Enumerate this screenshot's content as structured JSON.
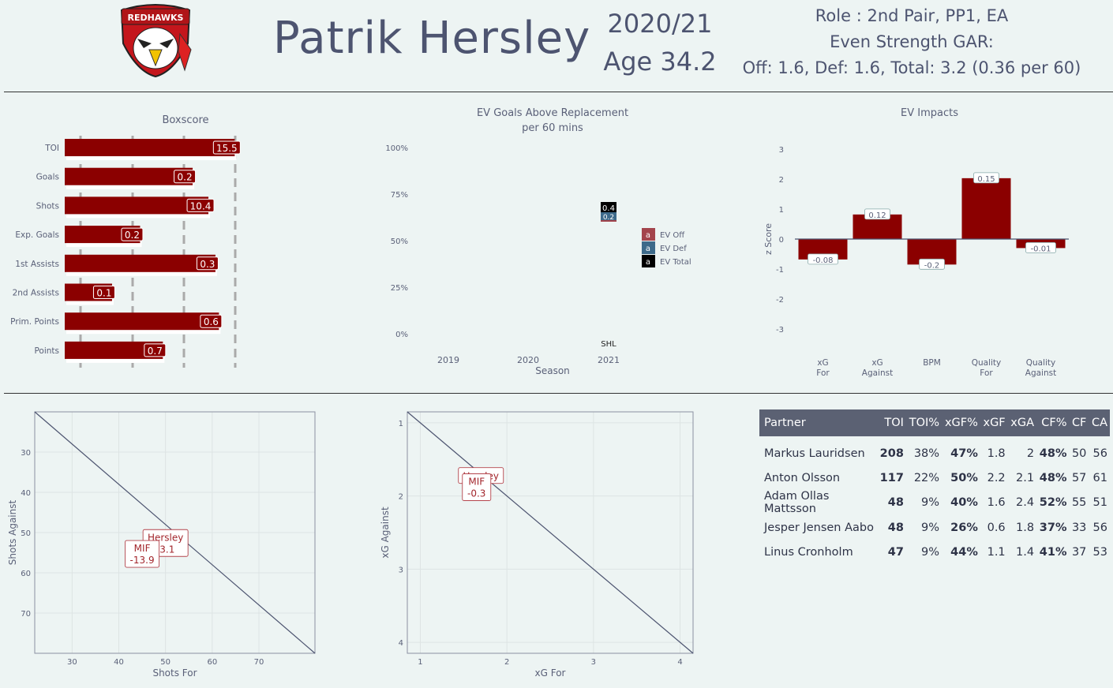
{
  "header": {
    "team_logo_text": "REDHAWKS",
    "player_name": "Patrik  Hersley",
    "season": "2020/21",
    "age": "Age 34.2",
    "role": "Role : 2nd  Pair,  PP1,  EA",
    "gar_label": "Even Strength GAR:",
    "gar_values": "Off: 1.6,  Def: 1.6,  Total: 3.2 (0.36 per 60)"
  },
  "boxscore": {
    "title": "Boxscore",
    "rows": [
      {
        "label": "TOI",
        "value": 15.5,
        "text": "15.5",
        "pct": 0.97
      },
      {
        "label": "Goals",
        "value": 0.2,
        "text": "0.2",
        "pct": 0.73
      },
      {
        "label": "Shots",
        "value": 10.4,
        "text": "10.4",
        "pct": 0.82
      },
      {
        "label": "Exp. Goals",
        "value": 0.2,
        "text": "0.2",
        "pct": 0.43
      },
      {
        "label": "1st Assists",
        "value": 0.3,
        "text": "0.3",
        "pct": 0.86
      },
      {
        "label": "2nd Assists",
        "value": 0.1,
        "text": "0.1",
        "pct": 0.27
      },
      {
        "label": "Prim. Points",
        "value": 0.6,
        "text": "0.6",
        "pct": 0.88
      },
      {
        "label": "Points",
        "value": 0.7,
        "text": "0.7",
        "pct": 0.56
      }
    ]
  },
  "gar_chart": {
    "title": "EV Goals Above Replacement",
    "subtitle": "per 60 mins",
    "y_ticks": [
      "100%",
      "75%",
      "50%",
      "25%",
      "0%"
    ],
    "x_ticks": [
      "2019",
      "2020",
      "2021"
    ],
    "xlabel": "Season",
    "league_label": "SHL",
    "legend": [
      {
        "key": "a",
        "label": "EV Off",
        "color": "#a3444c"
      },
      {
        "key": "a",
        "label": "EV Def",
        "color": "#3d6a8a"
      },
      {
        "key": "a",
        "label": "EV Total",
        "color": "#000000"
      }
    ],
    "point_labels": [
      "0.4",
      "0.2"
    ]
  },
  "impacts": {
    "title": "EV  Impacts",
    "ylabel": "z Score",
    "y_ticks": [
      "3",
      "2",
      "1",
      "0",
      "-1",
      "-2",
      "-3"
    ],
    "bars": [
      {
        "label1": "xG",
        "label2": "For",
        "z": -0.68,
        "text": "-0.08"
      },
      {
        "label1": "xG",
        "label2": "Against",
        "z": 0.82,
        "text": "0.12"
      },
      {
        "label1": "BPM",
        "label2": "",
        "z": -0.85,
        "text": "-0.2"
      },
      {
        "label1": "Quality",
        "label2": "For",
        "z": 2.03,
        "text": "0.15"
      },
      {
        "label1": "Quality",
        "label2": "Against",
        "z": -0.3,
        "text": "-0.01"
      }
    ]
  },
  "chart_data": [
    {
      "type": "bar",
      "title": "Boxscore",
      "categories": [
        "TOI",
        "Goals",
        "Shots",
        "Exp. Goals",
        "1st Assists",
        "2nd Assists",
        "Prim. Points",
        "Points"
      ],
      "values": [
        15.5,
        0.2,
        10.4,
        0.2,
        0.3,
        0.1,
        0.6,
        0.7
      ]
    },
    {
      "type": "scatter",
      "title": "EV Goals Above Replacement per 60 mins",
      "xlabel": "Season",
      "series": [
        {
          "name": "EV Off",
          "x": [
            2021
          ],
          "values": [
            0.2
          ]
        },
        {
          "name": "EV Def",
          "x": [
            2021
          ],
          "values": [
            0.2
          ]
        },
        {
          "name": "EV Total",
          "x": [
            2021
          ],
          "values": [
            0.4
          ]
        }
      ],
      "ylim": [
        "0%",
        "100%"
      ]
    },
    {
      "type": "bar",
      "title": "EV Impacts",
      "ylabel": "z Score",
      "categories": [
        "xG For",
        "xG Against",
        "BPM",
        "Quality For",
        "Quality Against"
      ],
      "values": [
        -0.68,
        0.82,
        -0.85,
        2.03,
        -0.3
      ],
      "ylim": [
        -3,
        3
      ]
    },
    {
      "type": "scatter",
      "xlabel": "Shots For",
      "ylabel": "Shots Against",
      "points": [
        {
          "label": "Hersley",
          "value": "-3.1",
          "x": 50,
          "y": 52.6
        },
        {
          "label": "MIF",
          "value": "-13.9",
          "x": 45,
          "y": 55.3
        }
      ],
      "xlim": [
        22,
        82
      ],
      "ylim": [
        80,
        20
      ]
    },
    {
      "type": "scatter",
      "xlabel": "xG For",
      "ylabel": "xG Against",
      "points": [
        {
          "label": "Hersley",
          "value": "",
          "x": 1.7,
          "y": 1.72
        },
        {
          "label": "MIF",
          "value": "-0.3",
          "x": 1.65,
          "y": 1.88
        }
      ],
      "xlim": [
        0.85,
        4.15
      ],
      "ylim": [
        4.15,
        0.85
      ]
    }
  ],
  "scatter_shots": {
    "xlabel": "Shots For",
    "ylabel": "Shots Against",
    "x_ticks": [
      "30",
      "40",
      "50",
      "60",
      "70"
    ],
    "y_ticks": [
      "30",
      "40",
      "50",
      "60",
      "70"
    ],
    "labels": [
      {
        "name": "Hersley",
        "value": "-3.1"
      },
      {
        "name": "MIF",
        "value": "-13.9"
      }
    ]
  },
  "scatter_xg": {
    "xlabel": "xG For",
    "ylabel": "xG Against",
    "x_ticks": [
      "1",
      "2",
      "3",
      "4"
    ],
    "y_ticks": [
      "1",
      "2",
      "3",
      "4"
    ],
    "labels": [
      {
        "name": "Hersley",
        "value": ""
      },
      {
        "name": "MIF",
        "value": "-0.3"
      }
    ]
  },
  "partners": {
    "columns": [
      "Partner",
      "TOI",
      "TOI%",
      "xGF%",
      "xGF",
      "xGA",
      "CF%",
      "CF",
      "CA"
    ],
    "rows": [
      [
        "Markus Lauridsen",
        "208",
        "38%",
        "47%",
        "1.8",
        "2",
        "48%",
        "50",
        "56"
      ],
      [
        "Anton Olsson",
        "117",
        "22%",
        "50%",
        "2.2",
        "2.1",
        "48%",
        "57",
        "61"
      ],
      [
        "Adam Ollas Mattsson",
        "48",
        "9%",
        "40%",
        "1.6",
        "2.4",
        "52%",
        "55",
        "51"
      ],
      [
        "Jesper Jensen Aabo",
        "48",
        "9%",
        "26%",
        "0.6",
        "1.8",
        "37%",
        "33",
        "56"
      ],
      [
        "Linus Cronholm",
        "47",
        "9%",
        "44%",
        "1.1",
        "1.4",
        "41%",
        "37",
        "53"
      ]
    ]
  }
}
